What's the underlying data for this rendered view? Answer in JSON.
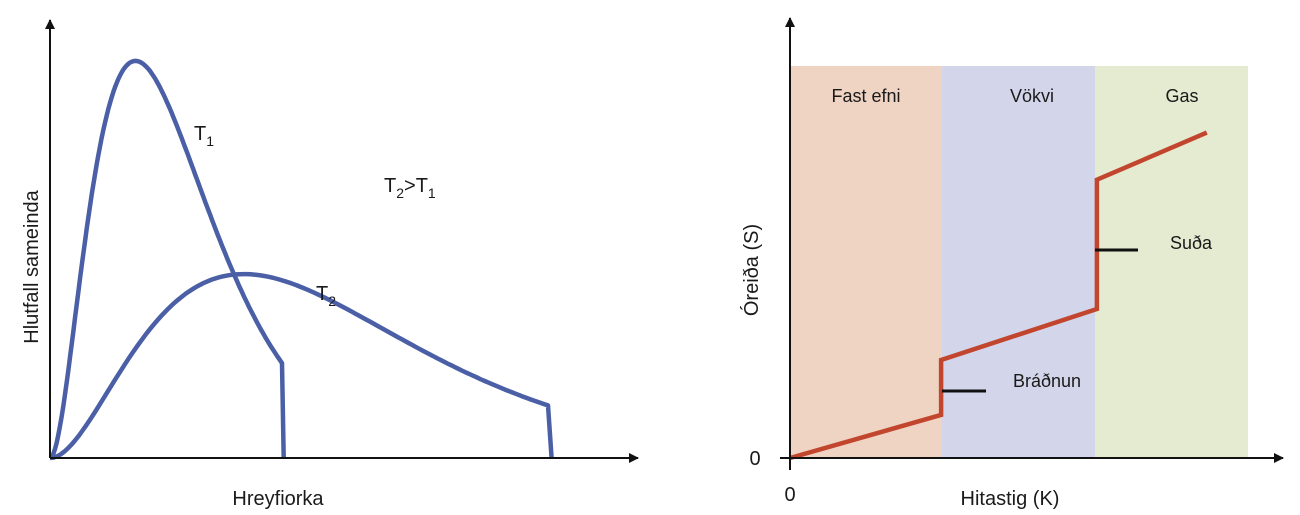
{
  "chart_data": [
    {
      "type": "line",
      "xlabel": "Hreyfiorka",
      "ylabel": "Hlutfall sameinda",
      "series": [
        {
          "name": "T",
          "sub": "1",
          "peak_x": 0.15,
          "peak_y": 0.95,
          "x_end": 0.41
        },
        {
          "name": "T",
          "sub": "2",
          "peak_x": 0.34,
          "peak_y": 0.44,
          "x_end": 0.88
        }
      ],
      "annotation": {
        "a": "T",
        "a_sub": "2",
        "op": ">",
        "b": "T",
        "b_sub": "1"
      },
      "colors": {
        "curve": "#4a5fa5",
        "axis": "#111111"
      }
    },
    {
      "type": "line",
      "xlabel": "Hitastig (K)",
      "ylabel": "Óreiða (S)",
      "x_tick": "0",
      "y_tick": "0",
      "regions": [
        {
          "label": "Fast efni",
          "color": "#efd3c3"
        },
        {
          "label": "Vökvi",
          "color": "#d3d6ea"
        },
        {
          "label": "Gas",
          "color": "#e4ebd1"
        }
      ],
      "series": [
        {
          "name": "S",
          "points": [
            [
              0,
              0
            ],
            [
              0.33,
              0.11
            ],
            [
              0.33,
              0.25
            ],
            [
              0.67,
              0.38
            ],
            [
              0.67,
              0.71
            ],
            [
              0.91,
              0.83
            ]
          ]
        }
      ],
      "annotations": [
        "Bráðnun",
        "Suða"
      ],
      "colors": {
        "line": "#c2462e",
        "axis": "#111111",
        "marker": "#111111"
      }
    }
  ]
}
